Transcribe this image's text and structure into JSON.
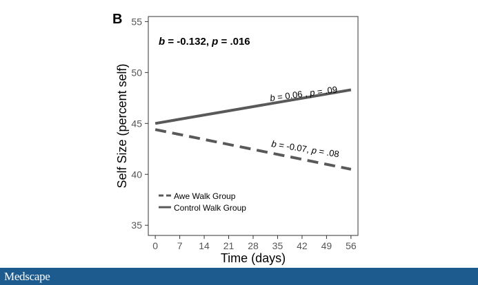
{
  "panel_label": "B",
  "footer": {
    "brand": "Medscape"
  },
  "colors": {
    "line": "#595959",
    "axis": "#333333",
    "footer_bg": "#1d5b8f"
  },
  "chart_data": {
    "type": "line",
    "title": "",
    "xlabel": "Time (days)",
    "ylabel": "Self Size (percent self)",
    "xlim": [
      -2,
      58
    ],
    "ylim": [
      34,
      55.5
    ],
    "xticks": [
      0,
      7,
      14,
      21,
      28,
      35,
      42,
      49,
      56
    ],
    "yticks": [
      35,
      40,
      45,
      50,
      55
    ],
    "grid": false,
    "legend_position": "bottom-left",
    "interaction_annotation": {
      "b": "-0.132",
      "p": ".016"
    },
    "series": [
      {
        "name": "Awe Walk Group",
        "style": "dashed",
        "x": [
          0,
          56
        ],
        "y": [
          44.4,
          40.5
        ],
        "annotation": {
          "b": "-0.07",
          "p": ".08"
        }
      },
      {
        "name": "Control Walk Group",
        "style": "solid",
        "x": [
          0,
          56
        ],
        "y": [
          45.0,
          48.3
        ],
        "annotation": {
          "b": "0.06",
          "p": ".09"
        }
      }
    ]
  }
}
